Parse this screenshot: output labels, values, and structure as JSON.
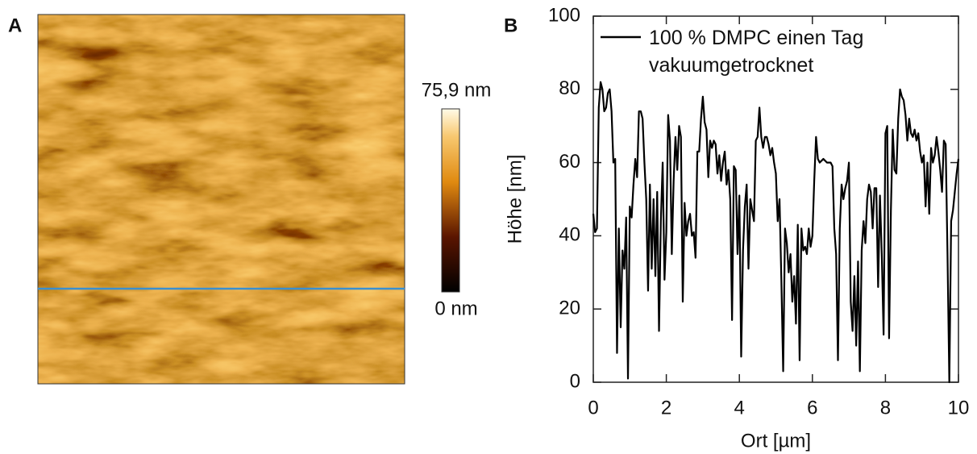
{
  "chart_data": [
    {
      "type": "image",
      "panel": "A",
      "colorbar_ticks": [
        {
          "value": 0,
          "label": "0 nm"
        },
        {
          "value": 75.9,
          "label": "75,9 nm"
        }
      ]
    },
    {
      "type": "line",
      "panel": "B",
      "xlabel": "Ort [µm]",
      "ylabel": "Höhe [nm]",
      "xlim": [
        0,
        10
      ],
      "ylim": [
        0,
        100
      ],
      "xticks": [
        0,
        2,
        4,
        6,
        8,
        10
      ],
      "yticks": [
        0,
        20,
        40,
        60,
        80,
        100
      ],
      "legend": "upper left",
      "x": [
        0,
        0.05,
        0.1,
        0.15,
        0.2,
        0.25,
        0.3,
        0.35,
        0.4,
        0.45,
        0.5,
        0.55,
        0.6,
        0.65,
        0.7,
        0.75,
        0.8,
        0.85,
        0.9,
        0.95,
        1.0,
        1.05,
        1.1,
        1.15,
        1.2,
        1.25,
        1.3,
        1.35,
        1.4,
        1.45,
        1.5,
        1.55,
        1.6,
        1.65,
        1.7,
        1.75,
        1.8,
        1.85,
        1.9,
        1.95,
        2.0,
        2.05,
        2.1,
        2.15,
        2.2,
        2.25,
        2.3,
        2.35,
        2.4,
        2.45,
        2.5,
        2.55,
        2.6,
        2.65,
        2.7,
        2.75,
        2.8,
        2.85,
        2.9,
        2.95,
        3.0,
        3.05,
        3.1,
        3.15,
        3.2,
        3.25,
        3.3,
        3.35,
        3.4,
        3.45,
        3.5,
        3.55,
        3.6,
        3.65,
        3.7,
        3.75,
        3.8,
        3.85,
        3.9,
        3.95,
        4.0,
        4.05,
        4.1,
        4.15,
        4.2,
        4.25,
        4.3,
        4.35,
        4.4,
        4.45,
        4.5,
        4.55,
        4.6,
        4.65,
        4.7,
        4.75,
        4.8,
        4.85,
        4.9,
        4.95,
        5.0,
        5.05,
        5.1,
        5.15,
        5.2,
        5.25,
        5.3,
        5.35,
        5.4,
        5.45,
        5.5,
        5.55,
        5.6,
        5.65,
        5.7,
        5.75,
        5.8,
        5.85,
        5.9,
        5.95,
        6.0,
        6.05,
        6.1,
        6.15,
        6.2,
        6.3,
        6.4,
        6.5,
        6.55,
        6.6,
        6.65,
        6.7,
        6.75,
        6.8,
        6.85,
        6.9,
        6.95,
        7.0,
        7.05,
        7.1,
        7.15,
        7.2,
        7.25,
        7.3,
        7.35,
        7.4,
        7.45,
        7.5,
        7.55,
        7.6,
        7.65,
        7.7,
        7.75,
        7.8,
        7.85,
        7.9,
        7.95,
        8.0,
        8.05,
        8.1,
        8.15,
        8.2,
        8.25,
        8.3,
        8.35,
        8.4,
        8.45,
        8.5,
        8.55,
        8.6,
        8.65,
        8.7,
        8.75,
        8.8,
        8.85,
        8.9,
        8.95,
        9.0,
        9.05,
        9.1,
        9.15,
        9.2,
        9.25,
        9.3,
        9.35,
        9.4,
        9.45,
        9.5,
        9.55,
        9.6,
        9.65,
        9.7,
        9.75,
        9.8,
        9.85,
        9.9,
        9.95,
        10.0
      ],
      "series": [
        {
          "name": "100 % DMPC einen Tag vakuumgetrocknet",
          "color": "#000000",
          "values": [
            46,
            41,
            42,
            75,
            82,
            80,
            74,
            75,
            79,
            80,
            74,
            60,
            61,
            8,
            42,
            15,
            36,
            31,
            45,
            1,
            48,
            45,
            54,
            61,
            56,
            74,
            74,
            72,
            60,
            50,
            25,
            54,
            31,
            50,
            29,
            52,
            14,
            44,
            60,
            28,
            41,
            73,
            66,
            35,
            55,
            67,
            58,
            70,
            67,
            22,
            49,
            40,
            44,
            46,
            40,
            41,
            34,
            63,
            63,
            72,
            78,
            71,
            69,
            56,
            66,
            64,
            66,
            65,
            57,
            62,
            55,
            60,
            63,
            54,
            58,
            50,
            17,
            59,
            58,
            35,
            51,
            7,
            36,
            48,
            54,
            31,
            50,
            47,
            44,
            66,
            67,
            75,
            67,
            64,
            67,
            67,
            65,
            62,
            64,
            60,
            57,
            44,
            50,
            28,
            3,
            42,
            38,
            30,
            35,
            22,
            29,
            16,
            43,
            6,
            42,
            36,
            37,
            35,
            42,
            37,
            40,
            55,
            67,
            61,
            60,
            61,
            60,
            60,
            59,
            42,
            35,
            6,
            42,
            54,
            50,
            53,
            55,
            60,
            22,
            14,
            29,
            10,
            33,
            3,
            36,
            44,
            38,
            50,
            54,
            52,
            42,
            53,
            53,
            26,
            51,
            35,
            13,
            68,
            70,
            12,
            47,
            69,
            58,
            57,
            72,
            80,
            78,
            77,
            73,
            66,
            72,
            68,
            67,
            69,
            66,
            68,
            63,
            60,
            62,
            48,
            60,
            46,
            64,
            60,
            62,
            67,
            63,
            58,
            52,
            66,
            65,
            35,
            0,
            44,
            47,
            52,
            57,
            61
          ]
        }
      ]
    }
  ]
}
